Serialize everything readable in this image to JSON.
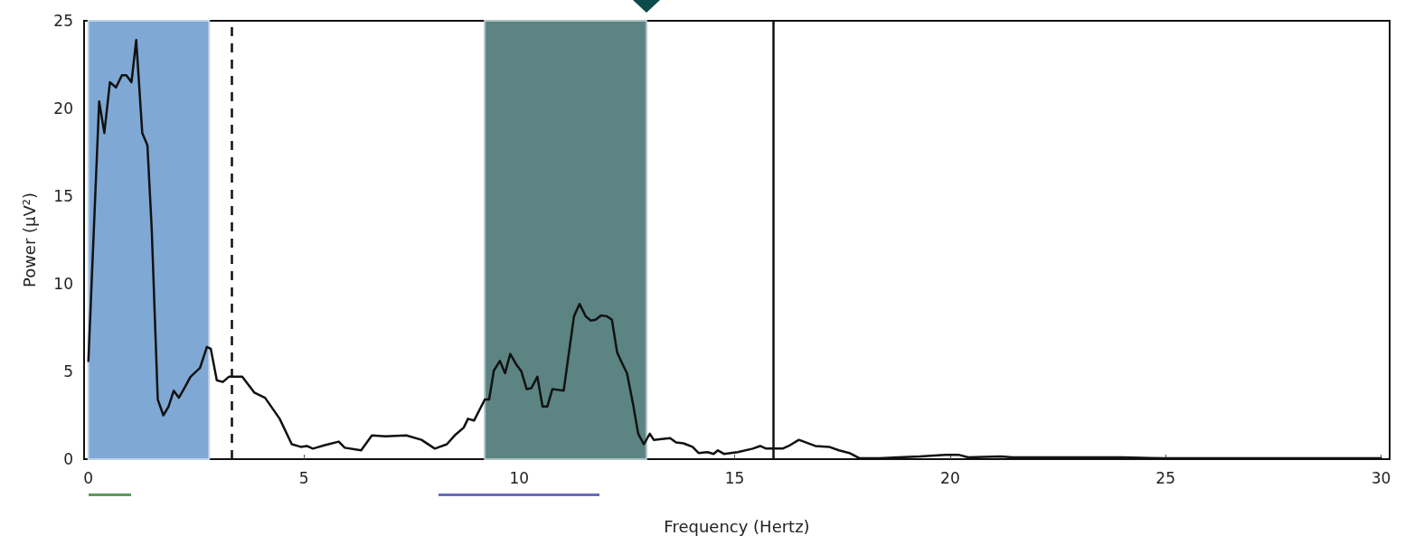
{
  "chart_data": {
    "type": "line",
    "xlabel": "Frequency (Hertz)",
    "ylabel": "Power (μV²)",
    "xlim": [
      -0.1,
      30.2
    ],
    "xticks": [
      0,
      5,
      10,
      15,
      20,
      25,
      30
    ],
    "ylim": [
      0,
      25
    ],
    "yticks": [
      0,
      5,
      10,
      15,
      20,
      25
    ],
    "grid": false,
    "marker": "none",
    "line_style": "solid",
    "series": [
      {
        "color": "#111111",
        "x": [
          0,
          0.25,
          0.37,
          0.5,
          0.64,
          0.78,
          0.88,
          1.0,
          1.11,
          1.25,
          1.37,
          1.47,
          1.61,
          1.74,
          1.86,
          1.98,
          2.1,
          2.24,
          2.37,
          2.59,
          2.75,
          2.84,
          2.98,
          3.12,
          3.26,
          3.57,
          3.85,
          4.1,
          4.44,
          4.72,
          4.93,
          5.07,
          5.21,
          5.49,
          5.81,
          5.95,
          6.33,
          6.58,
          6.89,
          7.38,
          7.73,
          8.04,
          8.32,
          8.5,
          8.71,
          8.81,
          8.95,
          9.2,
          9.3,
          9.41,
          9.55,
          9.67,
          9.79,
          9.93,
          10.05,
          10.17,
          10.28,
          10.42,
          10.54,
          10.65,
          10.77,
          10.91,
          11.03,
          11.27,
          11.4,
          11.54,
          11.66,
          11.77,
          11.9,
          12.03,
          12.15,
          12.27,
          12.38,
          12.5,
          12.64,
          12.76,
          12.89,
          13.03,
          13.12,
          13.5,
          13.64,
          13.81,
          14.02,
          14.16,
          14.37,
          14.51,
          14.61,
          14.75,
          15.07,
          15.42,
          15.59,
          15.73,
          16.11,
          16.25,
          16.49,
          16.87,
          17.19,
          17.42,
          17.66,
          17.9,
          18.36,
          18.8,
          19.3,
          19.9,
          20.19,
          20.42,
          21.17,
          21.45,
          22.1,
          23,
          24,
          25,
          26,
          27,
          28,
          29,
          30
        ],
        "values": [
          5.6,
          20.4,
          18.6,
          21.5,
          21.2,
          21.9,
          21.9,
          21.5,
          23.9,
          18.6,
          17.9,
          13.1,
          3.4,
          2.5,
          3.0,
          3.9,
          3.5,
          4.1,
          4.7,
          5.2,
          6.4,
          6.3,
          4.5,
          4.4,
          4.7,
          4.7,
          3.8,
          3.5,
          2.3,
          0.85,
          0.7,
          0.75,
          0.6,
          0.8,
          1.0,
          0.65,
          0.5,
          1.35,
          1.3,
          1.35,
          1.1,
          0.6,
          0.85,
          1.35,
          1.8,
          2.3,
          2.2,
          3.4,
          3.4,
          5.05,
          5.6,
          4.9,
          6.0,
          5.4,
          5.0,
          4.0,
          4.05,
          4.7,
          3.0,
          3.0,
          4.0,
          3.95,
          3.9,
          8.15,
          8.85,
          8.15,
          7.9,
          7.95,
          8.2,
          8.15,
          7.95,
          6.1,
          5.5,
          4.9,
          3.15,
          1.45,
          0.85,
          1.45,
          1.1,
          1.2,
          0.95,
          0.9,
          0.7,
          0.35,
          0.4,
          0.3,
          0.5,
          0.3,
          0.4,
          0.6,
          0.75,
          0.6,
          0.6,
          0.75,
          1.1,
          0.75,
          0.7,
          0.5,
          0.35,
          0.05,
          0.05,
          0.1,
          0.15,
          0.25,
          0.25,
          0.1,
          0.15,
          0.1,
          0.1,
          0.1,
          0.1,
          0.05,
          0.05,
          0.05,
          0.05,
          0.05,
          0.05
        ]
      }
    ],
    "bands": [
      {
        "axis": "x",
        "from": 0,
        "to": 2.8,
        "color": "#7fa8d4"
      },
      {
        "axis": "x",
        "from": 9.2,
        "to": 12.95,
        "color": "#5b8482"
      }
    ],
    "ref_lines": [
      {
        "axis": "x",
        "value": 3.33,
        "line_style": "dashed",
        "color": "#111111"
      },
      {
        "axis": "x",
        "value": 15.9,
        "line_style": "solid",
        "color": "#111111"
      }
    ]
  }
}
